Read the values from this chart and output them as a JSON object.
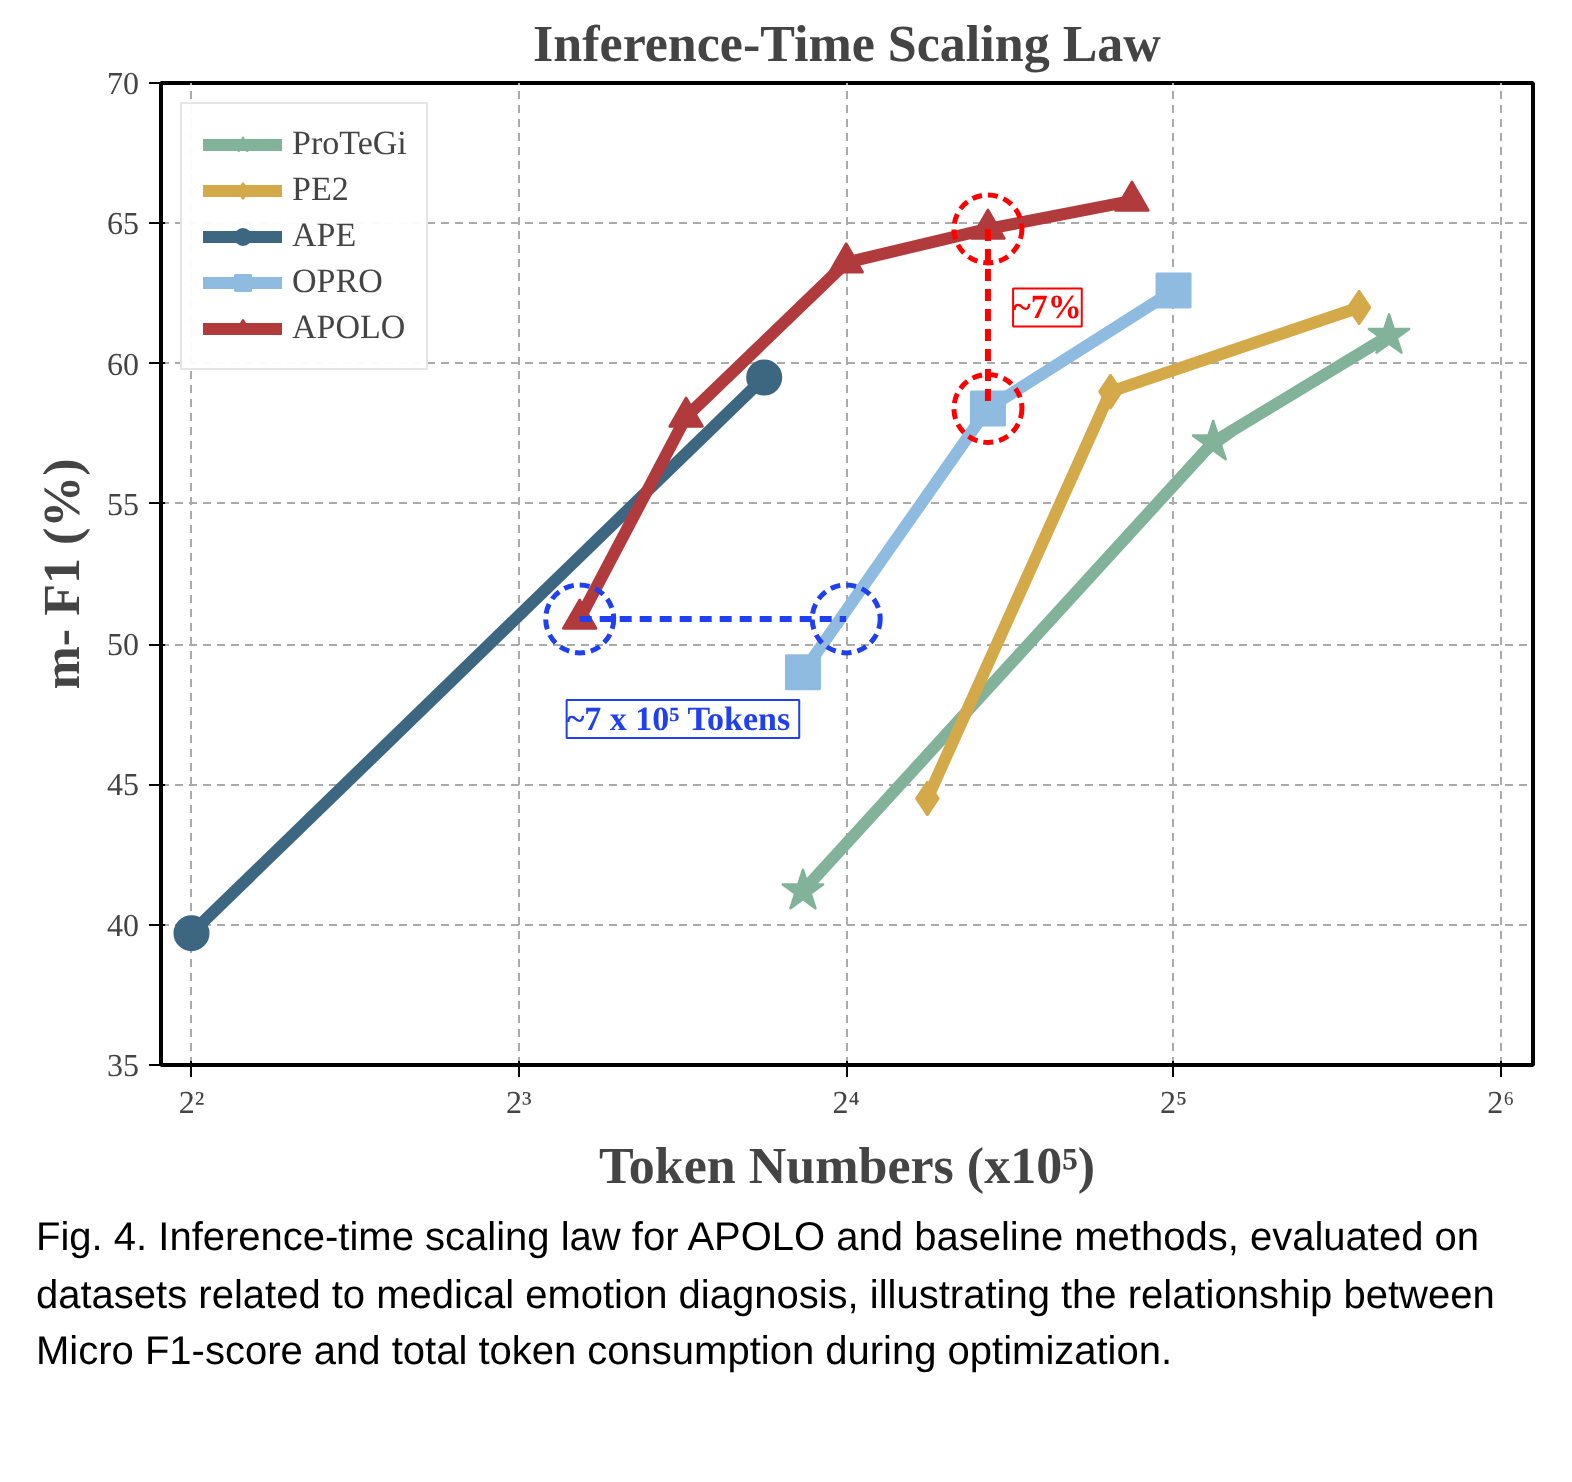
{
  "chart_data": {
    "type": "line",
    "title": "Inference-Time Scaling Law",
    "xlabel": "Token Numbers (x10⁵)",
    "ylabel": "m- F1 (%)",
    "log": "x",
    "xlim": [
      3.75,
      68.5
    ],
    "ylim": [
      35,
      70
    ],
    "xticks": [
      {
        "value": 4,
        "label": "2²"
      },
      {
        "value": 8,
        "label": "2³"
      },
      {
        "value": 16,
        "label": "2⁴"
      },
      {
        "value": 32,
        "label": "2⁵"
      },
      {
        "value": 64,
        "label": "2⁶"
      }
    ],
    "yticks": [
      35,
      40,
      45,
      50,
      55,
      60,
      65,
      70
    ],
    "grid": true,
    "legend": "top left",
    "line_style": "solid",
    "series": [
      {
        "name": "ProTeGi",
        "color": "#82b29a",
        "marker": "star",
        "x": [
          14.6,
          34.8,
          50.5
        ],
        "values": [
          41.2,
          57.2,
          61.0
        ]
      },
      {
        "name": "PE2",
        "color": "#d4a94a",
        "marker": "diamond",
        "x": [
          19.0,
          28.0,
          47.4
        ],
        "values": [
          44.5,
          59.0,
          62.0
        ]
      },
      {
        "name": "APE",
        "color": "#3d6680",
        "marker": "circle",
        "x": [
          4.0,
          13.45
        ],
        "values": [
          39.7,
          59.5
        ]
      },
      {
        "name": "OPRO",
        "color": "#8fbbe0",
        "marker": "square",
        "x": [
          14.6,
          21.6,
          32.0
        ],
        "values": [
          49.0,
          58.4,
          62.6
        ]
      },
      {
        "name": "APOLO",
        "color": "#b13a3c",
        "marker": "triangle",
        "x": [
          9.1,
          11.4,
          16.0,
          21.6,
          29.3
        ],
        "values": [
          50.9,
          58.1,
          63.6,
          64.8,
          65.8
        ]
      },
      {
        "color": "#ff0000",
        "marker": "circle",
        "line_style": "dashed",
        "x": [
          21.6,
          21.6
        ],
        "values": [
          64.8,
          58.4
        ]
      },
      {
        "color": "#1f3ff0",
        "marker": "circle",
        "line_style": "dashed",
        "x": [
          9.1,
          16.0
        ],
        "values": [
          50.9,
          50.9
        ]
      }
    ],
    "annotations": [
      {
        "text": "~7%",
        "x": 24.5,
        "y": 62.0
      },
      "~7 x 10⁵  Tokens",
      "Fig. 4. Inference-time scaling law for APOLO and baseline methods, evaluated on datasets related to medical emotion diagnosis, illustrating the relationship between Micro F1-score and total token consumption during optimization."
    ]
  }
}
